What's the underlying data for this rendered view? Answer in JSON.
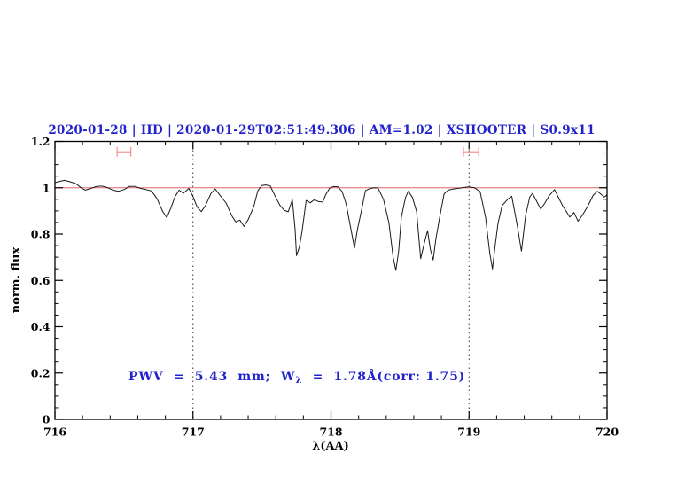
{
  "chart_data": {
    "type": "line",
    "title": "2020-01-28 | HD | 2020-01-29T02:51:49.306 | AM=1.02 | XSHOOTER | S0.9x11",
    "title_color": "#2222cc",
    "xlabel": "λ(AA)",
    "ylabel": "norm. flux",
    "xlim": [
      716,
      720
    ],
    "ylim": [
      0,
      1.2
    ],
    "grid": "off",
    "legend": "none",
    "x_tick_labels": [
      "716",
      "717",
      "718",
      "719",
      "720"
    ],
    "y_tick_labels": [
      "0",
      "0.2",
      "0.4",
      "0.6",
      "0.8",
      "1",
      "1.2"
    ],
    "x_major_step": 1,
    "x_minor_step": 0.2,
    "y_major_step": 0.2,
    "y_minor_step": 0.05,
    "dotted_vlines": [
      717,
      719
    ],
    "dotted_line_color": "#333333",
    "reference_line": {
      "y": 1.0,
      "color": "#e06565"
    },
    "range_markers": [
      {
        "x_start": 716.45,
        "x_end": 716.55,
        "y": 1.155,
        "color": "#f49898"
      },
      {
        "x_start": 718.96,
        "x_end": 719.07,
        "y": 1.155,
        "color": "#f49898"
      }
    ],
    "annotation": {
      "prefix": "PWV  =  5.43  mm;  W",
      "subscript": "λ",
      "suffix": "  =  1.78Å(corr: 1.75)",
      "color": "#2222cc"
    },
    "series": [
      {
        "name": "normalized-flux-spectrum",
        "color": "#1a1a1a",
        "points": [
          [
            716.0,
            1.022
          ],
          [
            716.04,
            1.028
          ],
          [
            716.07,
            1.032
          ],
          [
            716.11,
            1.026
          ],
          [
            716.15,
            1.018
          ],
          [
            716.19,
            1.0
          ],
          [
            716.22,
            0.99
          ],
          [
            716.26,
            0.997
          ],
          [
            716.3,
            1.005
          ],
          [
            716.34,
            1.007
          ],
          [
            716.38,
            1.001
          ],
          [
            716.42,
            0.99
          ],
          [
            716.46,
            0.985
          ],
          [
            716.5,
            0.992
          ],
          [
            716.54,
            1.006
          ],
          [
            716.58,
            1.006
          ],
          [
            716.62,
            0.997
          ],
          [
            716.66,
            0.992
          ],
          [
            716.7,
            0.986
          ],
          [
            716.74,
            0.952
          ],
          [
            716.78,
            0.898
          ],
          [
            716.81,
            0.871
          ],
          [
            716.84,
            0.912
          ],
          [
            716.87,
            0.962
          ],
          [
            716.9,
            0.99
          ],
          [
            716.93,
            0.976
          ],
          [
            716.97,
            0.997
          ],
          [
            717.0,
            0.962
          ],
          [
            717.03,
            0.917
          ],
          [
            717.06,
            0.897
          ],
          [
            717.09,
            0.922
          ],
          [
            717.13,
            0.975
          ],
          [
            717.16,
            0.995
          ],
          [
            717.2,
            0.964
          ],
          [
            717.24,
            0.934
          ],
          [
            717.28,
            0.88
          ],
          [
            717.31,
            0.852
          ],
          [
            717.34,
            0.86
          ],
          [
            717.37,
            0.833
          ],
          [
            717.4,
            0.862
          ],
          [
            717.44,
            0.918
          ],
          [
            717.47,
            0.988
          ],
          [
            717.5,
            1.01
          ],
          [
            717.53,
            1.012
          ],
          [
            717.56,
            1.007
          ],
          [
            717.6,
            0.958
          ],
          [
            717.63,
            0.924
          ],
          [
            717.66,
            0.903
          ],
          [
            717.69,
            0.896
          ],
          [
            717.72,
            0.948
          ],
          [
            717.74,
            0.82
          ],
          [
            717.75,
            0.707
          ],
          [
            717.77,
            0.742
          ],
          [
            717.79,
            0.81
          ],
          [
            717.82,
            0.945
          ],
          [
            717.85,
            0.935
          ],
          [
            717.88,
            0.948
          ],
          [
            717.91,
            0.94
          ],
          [
            717.94,
            0.938
          ],
          [
            717.96,
            0.968
          ],
          [
            717.99,
            0.998
          ],
          [
            718.02,
            1.005
          ],
          [
            718.05,
            1.004
          ],
          [
            718.08,
            0.984
          ],
          [
            718.11,
            0.93
          ],
          [
            718.14,
            0.835
          ],
          [
            718.17,
            0.739
          ],
          [
            718.19,
            0.815
          ],
          [
            718.22,
            0.9
          ],
          [
            718.25,
            0.988
          ],
          [
            718.28,
            0.996
          ],
          [
            718.31,
            1.0
          ],
          [
            718.34,
            0.999
          ],
          [
            718.38,
            0.95
          ],
          [
            718.42,
            0.848
          ],
          [
            718.45,
            0.7
          ],
          [
            718.47,
            0.643
          ],
          [
            718.49,
            0.725
          ],
          [
            718.51,
            0.873
          ],
          [
            718.54,
            0.958
          ],
          [
            718.56,
            0.985
          ],
          [
            718.59,
            0.958
          ],
          [
            718.62,
            0.897
          ],
          [
            718.65,
            0.694
          ],
          [
            718.68,
            0.77
          ],
          [
            718.7,
            0.815
          ],
          [
            718.72,
            0.735
          ],
          [
            718.74,
            0.688
          ],
          [
            718.76,
            0.78
          ],
          [
            718.79,
            0.88
          ],
          [
            718.82,
            0.974
          ],
          [
            718.85,
            0.99
          ],
          [
            718.88,
            0.994
          ],
          [
            718.92,
            0.997
          ],
          [
            718.96,
            1.001
          ],
          [
            719.0,
            1.004
          ],
          [
            719.04,
            1.0
          ],
          [
            719.08,
            0.984
          ],
          [
            719.12,
            0.873
          ],
          [
            719.15,
            0.72
          ],
          [
            719.17,
            0.649
          ],
          [
            719.19,
            0.752
          ],
          [
            719.21,
            0.847
          ],
          [
            719.24,
            0.923
          ],
          [
            719.28,
            0.95
          ],
          [
            719.31,
            0.963
          ],
          [
            719.35,
            0.834
          ],
          [
            719.38,
            0.726
          ],
          [
            719.41,
            0.88
          ],
          [
            719.44,
            0.96
          ],
          [
            719.46,
            0.976
          ],
          [
            719.5,
            0.93
          ],
          [
            719.52,
            0.908
          ],
          [
            719.55,
            0.934
          ],
          [
            719.58,
            0.965
          ],
          [
            719.62,
            0.992
          ],
          [
            719.65,
            0.955
          ],
          [
            719.68,
            0.92
          ],
          [
            719.71,
            0.893
          ],
          [
            719.73,
            0.873
          ],
          [
            719.76,
            0.893
          ],
          [
            719.79,
            0.856
          ],
          [
            719.82,
            0.88
          ],
          [
            719.86,
            0.92
          ],
          [
            719.9,
            0.968
          ],
          [
            719.93,
            0.985
          ],
          [
            719.96,
            0.97
          ],
          [
            719.98,
            0.96
          ],
          [
            720.0,
            0.968
          ]
        ]
      }
    ]
  }
}
